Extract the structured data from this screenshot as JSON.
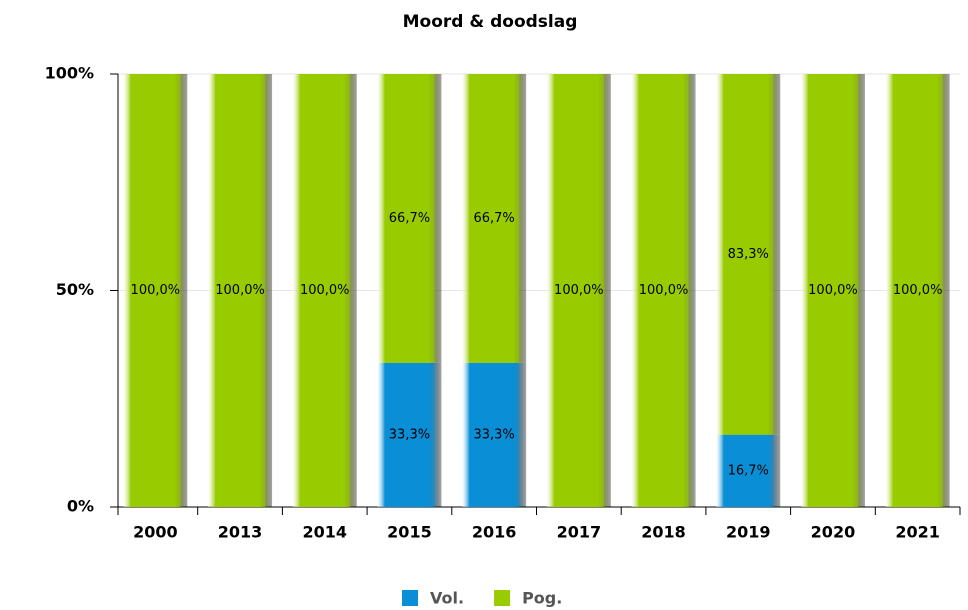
{
  "chart_data": {
    "type": "stacked_bar",
    "title": "Moord & doodslag",
    "categories": [
      "2000",
      "2013",
      "2014",
      "2015",
      "2016",
      "2017",
      "2018",
      "2019",
      "2020",
      "2021"
    ],
    "series": [
      {
        "name": "Vol.",
        "color": "#0a8fd6",
        "values": [
          0,
          0,
          0,
          33.3,
          33.3,
          0,
          0,
          16.7,
          0,
          0
        ],
        "value_labels": [
          null,
          null,
          null,
          "33,3%",
          "33,3%",
          null,
          null,
          "16,7%",
          null,
          null
        ]
      },
      {
        "name": "Pog.",
        "color": "#99cc00",
        "values": [
          100,
          100,
          100,
          66.7,
          66.7,
          100,
          100,
          83.3,
          100,
          100
        ],
        "value_labels": [
          "100,0%",
          "100,0%",
          "100,0%",
          "66,7%",
          "66,7%",
          "100,0%",
          "100,0%",
          "83,3%",
          "100,0%",
          "100,0%"
        ]
      }
    ],
    "ylim": [
      0,
      100
    ],
    "yticks": [
      {
        "value": 0,
        "label": "0%"
      },
      {
        "value": 50,
        "label": "50%"
      },
      {
        "value": 100,
        "label": "100%"
      }
    ],
    "grid": true,
    "legend": "bottom"
  }
}
